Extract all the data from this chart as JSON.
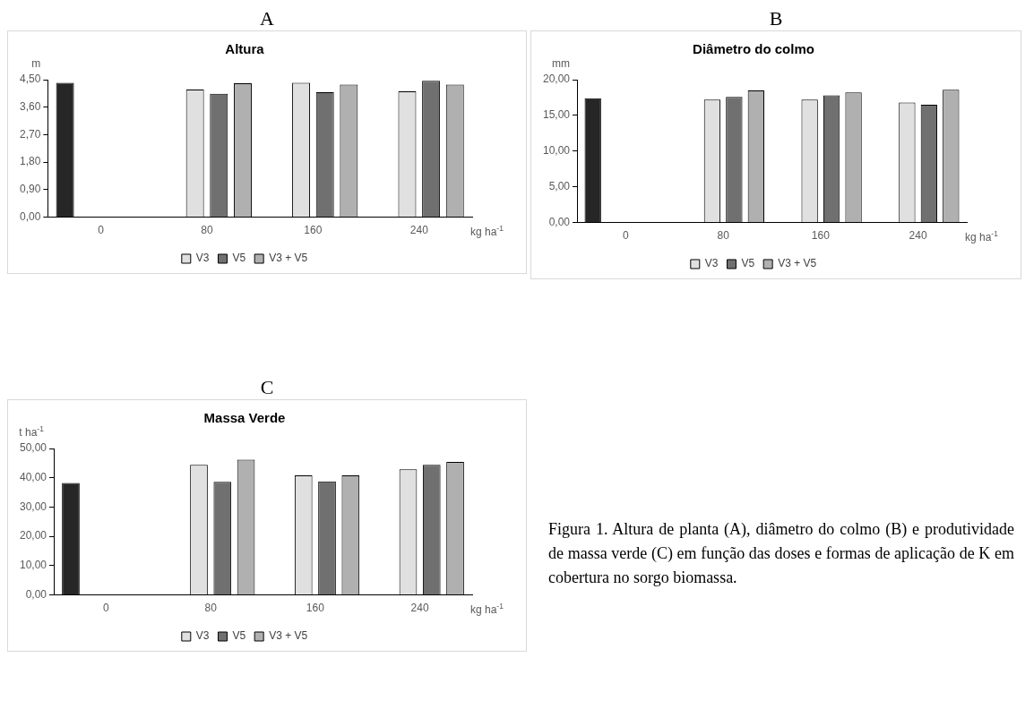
{
  "chart_data": [
    {
      "type": "bar",
      "subtitle": "A",
      "title": "Altura",
      "ylabel": "m",
      "xlabel": "kg ha$^{-1}$",
      "categories": [
        "0",
        "80",
        "160",
        "240"
      ],
      "series": [
        {
          "color": "#262626",
          "values": [
            4.4,
            null,
            null,
            null
          ]
        },
        {
          "name": "V3",
          "color": "#e0e0e0",
          "values": [
            null,
            4.18,
            4.4,
            4.12
          ]
        },
        {
          "name": "V5",
          "color": "#707070",
          "values": [
            null,
            4.04,
            4.09,
            4.46
          ]
        },
        {
          "name": "V3 + V5",
          "color": "#b0b0b0",
          "values": [
            null,
            4.38,
            4.34,
            4.34
          ]
        }
      ],
      "ylim": [
        0,
        4.5
      ],
      "yticks": [
        {
          "value": 0,
          "label": "0,00"
        },
        {
          "value": 0.9,
          "label": "0,90"
        },
        {
          "value": 1.8,
          "label": "1,80"
        },
        {
          "value": 2.7,
          "label": "2,70"
        },
        {
          "value": 3.6,
          "label": "3,60"
        },
        {
          "value": 4.5,
          "label": "4,50"
        }
      ],
      "grid": false,
      "legend": "bottom"
    },
    {
      "type": "bar",
      "subtitle": "B",
      "title": "Diâmetro do colmo",
      "ylabel": "mm",
      "xlabel": "kg ha$^{-1}$",
      "categories": [
        "0",
        "80",
        "160",
        "240"
      ],
      "series": [
        {
          "color": "#262626",
          "values": [
            17.4,
            null,
            null,
            null
          ]
        },
        {
          "name": "V3",
          "color": "#e0e0e0",
          "values": [
            null,
            17.2,
            17.2,
            16.8
          ]
        },
        {
          "name": "V5",
          "color": "#707070",
          "values": [
            null,
            17.6,
            17.8,
            16.5
          ]
        },
        {
          "name": "V3 + V5",
          "color": "#b0b0b0",
          "values": [
            null,
            18.5,
            18.2,
            18.6
          ]
        }
      ],
      "ylim": [
        0,
        20
      ],
      "yticks": [
        {
          "value": 0,
          "label": "0,00"
        },
        {
          "value": 5,
          "label": "5,00"
        },
        {
          "value": 10,
          "label": "10,00"
        },
        {
          "value": 15,
          "label": "15,00"
        },
        {
          "value": 20,
          "label": "20,00"
        }
      ],
      "grid": false,
      "legend": "bottom"
    },
    {
      "type": "bar",
      "subtitle": "C",
      "title": "Massa Verde",
      "ylabel": "t ha$^{-1}$",
      "xlabel": "kg ha$^{-1}$",
      "categories": [
        "0",
        "80",
        "160",
        "240"
      ],
      "series": [
        {
          "color": "#262626",
          "values": [
            38.2,
            null,
            null,
            null
          ]
        },
        {
          "name": "V3",
          "color": "#e0e0e0",
          "values": [
            null,
            44.4,
            40.8,
            42.9
          ]
        },
        {
          "name": "V5",
          "color": "#707070",
          "values": [
            null,
            38.6,
            38.8,
            44.4
          ]
        },
        {
          "name": "V3 + V5",
          "color": "#b0b0b0",
          "values": [
            null,
            46.2,
            40.8,
            45.4
          ]
        }
      ],
      "ylim": [
        0,
        50
      ],
      "yticks": [
        {
          "value": 0,
          "label": "0,00"
        },
        {
          "value": 10,
          "label": "10,00"
        },
        {
          "value": 20,
          "label": "20,00"
        },
        {
          "value": 30,
          "label": "30,00"
        },
        {
          "value": 40,
          "label": "40,00"
        },
        {
          "value": 50,
          "label": "50,00"
        }
      ],
      "grid": false,
      "legend": "bottom",
      "annotations": [
        "Figura 1. Altura de planta (A), diâmetro do colmo (B) e produtividade de massa verde (C) em função das doses e formas de aplicação de K em cobertura no sorgo biomassa."
      ]
    }
  ]
}
